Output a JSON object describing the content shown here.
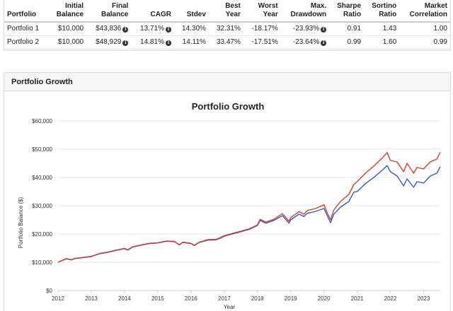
{
  "summary": {
    "headers": [
      [
        "Portfolio"
      ],
      [
        "Initial",
        "Balance"
      ],
      [
        "Final",
        "Balance"
      ],
      [
        "CAGR"
      ],
      [
        "Stdev"
      ],
      [
        "Best",
        "Year"
      ],
      [
        "Worst",
        "Year"
      ],
      [
        "Max.",
        "Drawdown"
      ],
      [
        "Sharpe",
        "Ratio"
      ],
      [
        "Sortino",
        "Ratio"
      ],
      [
        "Market",
        "Correlation"
      ]
    ],
    "rows": [
      {
        "name": "Portfolio 1",
        "initial": "$10,000",
        "final": "$43,836",
        "cagr": "13.71%",
        "stdev": "14.30%",
        "best": "32.31%",
        "worst": "-18.17%",
        "drawdown": "-23.93%",
        "sharpe": "0.91",
        "sortino": "1.43",
        "correlation": "1.00"
      },
      {
        "name": "Portfolio 2",
        "initial": "$10,000",
        "final": "$48,929",
        "cagr": "14.81%",
        "stdev": "14.11%",
        "best": "33.47%",
        "worst": "-17.51%",
        "drawdown": "-23.64%",
        "sharpe": "0.99",
        "sortino": "1.60",
        "correlation": "0.99"
      }
    ]
  },
  "panel": {
    "title": "Portfolio Growth"
  },
  "icons": {
    "info": "info-icon"
  },
  "colors": {
    "portfolio1": "#3a5bb5",
    "portfolio2": "#d0402b"
  },
  "chart_data": {
    "type": "line",
    "title": "Portfolio Growth",
    "xlabel": "Year",
    "ylabel": "Portfolio Balance ($)",
    "ylim": [
      0,
      60000
    ],
    "xlim": [
      2012,
      2023.5
    ],
    "yticks": [
      0,
      10000,
      20000,
      30000,
      40000,
      50000,
      60000
    ],
    "ytick_labels": [
      "$0",
      "$10,000",
      "$20,000",
      "$30,000",
      "$40,000",
      "$50,000",
      "$60,000"
    ],
    "xticks": [
      2012,
      2013,
      2014,
      2015,
      2016,
      2017,
      2018,
      2019,
      2020,
      2021,
      2022,
      2023
    ],
    "xtick_labels": [
      "2012",
      "2013",
      "2014",
      "2015",
      "2016",
      "2017",
      "2018",
      "2019",
      "2020",
      "2021",
      "2022",
      "2023"
    ],
    "series": [
      {
        "name": "Portfolio 1",
        "color": "#3a5bb5",
        "x": [
          2012.0,
          2012.25,
          2012.4,
          2012.5,
          2012.75,
          2013.0,
          2013.25,
          2013.5,
          2013.75,
          2014.0,
          2014.1,
          2014.25,
          2014.5,
          2014.75,
          2015.0,
          2015.25,
          2015.5,
          2015.65,
          2015.75,
          2016.0,
          2016.1,
          2016.25,
          2016.5,
          2016.75,
          2016.9,
          2017.0,
          2017.25,
          2017.5,
          2017.75,
          2018.0,
          2018.08,
          2018.25,
          2018.5,
          2018.75,
          2018.95,
          2019.0,
          2019.25,
          2019.4,
          2019.5,
          2019.75,
          2020.0,
          2020.1,
          2020.2,
          2020.3,
          2020.5,
          2020.75,
          2020.9,
          2021.0,
          2021.25,
          2021.5,
          2021.75,
          2021.9,
          2022.0,
          2022.2,
          2022.4,
          2022.5,
          2022.7,
          2022.8,
          2023.0,
          2023.2,
          2023.4,
          2023.5
        ],
        "y": [
          10000,
          11200,
          10800,
          11300,
          11600,
          12000,
          13000,
          13500,
          14200,
          14800,
          14300,
          15400,
          16000,
          16600,
          16800,
          17400,
          17300,
          16100,
          17000,
          16600,
          15900,
          17000,
          17800,
          17900,
          18600,
          19200,
          20000,
          20800,
          21600,
          23000,
          24800,
          23800,
          24800,
          26500,
          23800,
          25000,
          27000,
          26200,
          27300,
          28000,
          29000,
          26500,
          24000,
          27000,
          29500,
          31500,
          34800,
          35000,
          37800,
          40000,
          42500,
          44200,
          42000,
          40500,
          37000,
          39500,
          36500,
          38500,
          38000,
          40500,
          41500,
          43836
        ]
      },
      {
        "name": "Portfolio 2",
        "color": "#d0402b",
        "x": [
          2012.0,
          2012.25,
          2012.4,
          2012.5,
          2012.75,
          2013.0,
          2013.25,
          2013.5,
          2013.75,
          2014.0,
          2014.1,
          2014.25,
          2014.5,
          2014.75,
          2015.0,
          2015.25,
          2015.5,
          2015.65,
          2015.75,
          2016.0,
          2016.1,
          2016.25,
          2016.5,
          2016.75,
          2016.9,
          2017.0,
          2017.25,
          2017.5,
          2017.75,
          2018.0,
          2018.08,
          2018.25,
          2018.5,
          2018.75,
          2018.95,
          2019.0,
          2019.25,
          2019.4,
          2019.5,
          2019.75,
          2020.0,
          2020.1,
          2020.2,
          2020.3,
          2020.5,
          2020.75,
          2020.9,
          2021.0,
          2021.25,
          2021.5,
          2021.75,
          2021.9,
          2022.0,
          2022.2,
          2022.4,
          2022.5,
          2022.7,
          2022.8,
          2023.0,
          2023.2,
          2023.4,
          2023.5
        ],
        "y": [
          10000,
          11300,
          10900,
          11400,
          11700,
          12100,
          13100,
          13600,
          14300,
          14900,
          14400,
          15500,
          16100,
          16700,
          16900,
          17500,
          17400,
          16200,
          17100,
          16700,
          16000,
          17100,
          18000,
          18100,
          18800,
          19400,
          20200,
          21000,
          21800,
          23200,
          25200,
          24200,
          25200,
          27200,
          24500,
          25800,
          27900,
          27000,
          28300,
          29000,
          30300,
          27500,
          25000,
          28500,
          31500,
          34000,
          37500,
          38500,
          41500,
          44000,
          46800,
          48800,
          46000,
          45500,
          42000,
          45000,
          41500,
          43500,
          43000,
          45500,
          46500,
          48929
        ]
      }
    ]
  }
}
